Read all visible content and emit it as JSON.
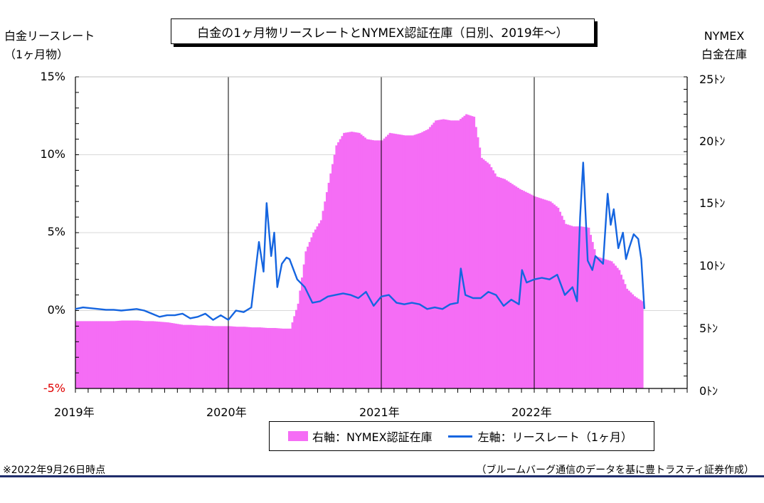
{
  "title": "白金の1ヶ月物リースレートとNYMEX認証在庫（日別、2019年～）",
  "left_axis_title": [
    "白金リースレート",
    "（1ヶ月物）"
  ],
  "right_axis_title": [
    "NYMEX",
    "白金在庫"
  ],
  "footer_note": "※2022年9月26日時点",
  "source_note": "（ブルームバーグ通信のデータを基に豊トラスティ証券作成）",
  "colors": {
    "bars": "#f56df5",
    "line": "#1565e0",
    "neg_tick": "#e00000"
  },
  "chart_data": {
    "type": "bar+line",
    "x_labels": [
      "2019年",
      "2020年",
      "2021年",
      "2022年"
    ],
    "left_axis": {
      "ticks": [
        "15%",
        "10%",
        "5%",
        "0%",
        "-5%"
      ],
      "ylim": [
        -5,
        15
      ],
      "unit": "%"
    },
    "right_axis": {
      "ticks": [
        "25ﾄﾝ",
        "20ﾄﾝ",
        "15ﾄﾝ",
        "10ﾄﾝ",
        "5ﾄﾝ",
        "0ﾄﾝ"
      ],
      "ylim": [
        0,
        25
      ],
      "unit": "ﾄﾝ"
    },
    "legend": [
      "右軸：NYMEX認証在庫",
      "左軸：リースレート（1ヶ月）"
    ],
    "series": [
      {
        "name": "右軸：NYMEX認証在庫",
        "type": "bar",
        "axis": "right",
        "x": [
          2019.0,
          2019.05,
          2019.1,
          2019.15,
          2019.2,
          2019.25,
          2019.3,
          2019.35,
          2019.4,
          2019.45,
          2019.5,
          2019.55,
          2019.6,
          2019.65,
          2019.7,
          2019.75,
          2019.8,
          2019.85,
          2019.9,
          2019.95,
          2020.0,
          2020.05,
          2020.1,
          2020.15,
          2020.2,
          2020.25,
          2020.3,
          2020.35,
          2020.4,
          2020.45,
          2020.5,
          2020.55,
          2020.6,
          2020.65,
          2020.7,
          2020.75,
          2020.8,
          2020.85,
          2020.9,
          2020.95,
          2021.0,
          2021.05,
          2021.1,
          2021.15,
          2021.2,
          2021.25,
          2021.3,
          2021.35,
          2021.4,
          2021.45,
          2021.5,
          2021.55,
          2021.6,
          2021.65,
          2021.7,
          2021.75,
          2021.8,
          2021.85,
          2021.9,
          2021.95,
          2022.0,
          2022.05,
          2022.1,
          2022.15,
          2022.2,
          2022.25,
          2022.3,
          2022.35,
          2022.4,
          2022.45,
          2022.5,
          2022.55,
          2022.6,
          2022.65,
          2022.7
        ],
        "values": [
          5.4,
          5.4,
          5.4,
          5.4,
          5.4,
          5.4,
          5.45,
          5.45,
          5.45,
          5.4,
          5.4,
          5.35,
          5.3,
          5.2,
          5.1,
          5.1,
          5.05,
          5.05,
          5.0,
          5.0,
          5.0,
          4.95,
          4.95,
          4.9,
          4.9,
          4.85,
          4.85,
          4.8,
          4.8,
          6.8,
          11.0,
          12.5,
          13.5,
          16.5,
          19.5,
          20.5,
          20.6,
          20.5,
          20.0,
          19.9,
          19.9,
          20.5,
          20.4,
          20.3,
          20.3,
          20.5,
          20.8,
          21.5,
          21.6,
          21.5,
          21.5,
          22.0,
          21.8,
          18.5,
          18.0,
          17.0,
          16.8,
          16.4,
          16.0,
          15.7,
          15.4,
          15.2,
          15.0,
          14.5,
          13.2,
          13.0,
          13.0,
          12.9,
          10.6,
          10.4,
          10.2,
          9.5,
          8.0,
          7.4,
          7.0
        ]
      },
      {
        "name": "左軸：リースレート（1ヶ月）",
        "type": "line",
        "axis": "left",
        "x": [
          2019.0,
          2019.05,
          2019.1,
          2019.15,
          2019.2,
          2019.25,
          2019.3,
          2019.35,
          2019.4,
          2019.45,
          2019.5,
          2019.55,
          2019.6,
          2019.65,
          2019.7,
          2019.75,
          2019.8,
          2019.85,
          2019.9,
          2019.95,
          2020.0,
          2020.05,
          2020.1,
          2020.15,
          2020.2,
          2020.23,
          2020.25,
          2020.28,
          2020.3,
          2020.32,
          2020.35,
          2020.38,
          2020.4,
          2020.45,
          2020.5,
          2020.55,
          2020.6,
          2020.65,
          2020.7,
          2020.75,
          2020.8,
          2020.85,
          2020.9,
          2020.95,
          2021.0,
          2021.05,
          2021.1,
          2021.15,
          2021.2,
          2021.25,
          2021.3,
          2021.35,
          2021.4,
          2021.45,
          2021.5,
          2021.52,
          2021.55,
          2021.6,
          2021.65,
          2021.7,
          2021.75,
          2021.8,
          2021.85,
          2021.9,
          2021.92,
          2021.95,
          2022.0,
          2022.05,
          2022.1,
          2022.15,
          2022.2,
          2022.25,
          2022.28,
          2022.3,
          2022.32,
          2022.35,
          2022.38,
          2022.4,
          2022.45,
          2022.48,
          2022.5,
          2022.52,
          2022.55,
          2022.58,
          2022.6,
          2022.62,
          2022.65,
          2022.68,
          2022.7,
          2022.72
        ],
        "values": [
          0.1,
          0.2,
          0.15,
          0.1,
          0.05,
          0.05,
          0.0,
          0.05,
          0.1,
          0.0,
          -0.2,
          -0.4,
          -0.3,
          -0.3,
          -0.2,
          -0.5,
          -0.4,
          -0.2,
          -0.6,
          -0.3,
          -0.6,
          0.0,
          -0.1,
          0.2,
          4.4,
          2.5,
          6.9,
          3.5,
          5.0,
          1.5,
          3.0,
          3.4,
          3.3,
          2.0,
          1.5,
          0.5,
          0.6,
          0.9,
          1.0,
          1.1,
          1.0,
          0.8,
          1.2,
          0.3,
          0.9,
          1.0,
          0.5,
          0.4,
          0.5,
          0.4,
          0.1,
          0.2,
          0.1,
          0.4,
          0.5,
          2.7,
          1.0,
          0.8,
          0.8,
          1.2,
          1.0,
          0.3,
          0.7,
          0.4,
          2.6,
          1.8,
          2.0,
          2.1,
          2.0,
          2.3,
          1.0,
          1.5,
          0.6,
          6.0,
          9.5,
          3.2,
          2.6,
          3.5,
          3.0,
          7.5,
          5.5,
          6.5,
          4.0,
          5.0,
          3.3,
          4.0,
          4.9,
          4.6,
          3.3,
          0.1
        ]
      }
    ],
    "x_range": [
      2019.0,
      2023.0
    ],
    "grid": "horizontal at 5% steps, vertical year separators"
  }
}
